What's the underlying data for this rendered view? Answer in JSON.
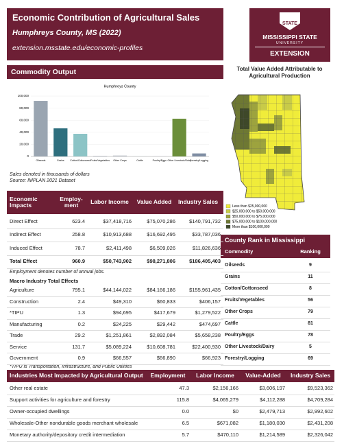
{
  "header": {
    "title": "Economic Contribution of Agricultural Sales",
    "subtitle": "Humphreys County, MS (2022)",
    "url": "extension.msstate.edu/economic-profiles"
  },
  "logo": {
    "shield": "STATE",
    "university_name": "MISSISSIPPI STATE",
    "university": "UNIVERSITY",
    "unit": "EXTENSION"
  },
  "commodity_output": {
    "heading": "Commodity Output",
    "chart": {
      "type": "bar",
      "title": "Humphreys County",
      "categories": [
        "Oilseeds",
        "Grains",
        "Cotton/Cottonseed",
        "Fruits/Vegetables",
        "Other Crops",
        "Cattle",
        "Poultry/Eggs",
        "Other Livestock/Dairy",
        "Forestry/Logging"
      ],
      "values": [
        92000,
        46500,
        37500,
        1000,
        1500,
        200,
        300,
        62500,
        5000
      ],
      "colors": [
        "#9aa5b1",
        "#2e6f7e",
        "#8cc4c6",
        "#b9bfc6",
        "#b9bfc6",
        "#b9bfc6",
        "#b9bfc6",
        "#6b8e3a",
        "#7f8ea3"
      ],
      "ylim": [
        0,
        100000
      ],
      "yticks": [
        0,
        {
          "value": 20000,
          "label": "20,000"
        },
        {
          "value": 40000,
          "label": "40,000"
        },
        {
          "value": 60000,
          "label": "60,000"
        },
        {
          "value": 80000,
          "label": "80,000"
        },
        {
          "value": 100000,
          "label": "100,000"
        }
      ]
    },
    "note": "Sales denoted in thousands of dollars",
    "source": "Source: IMPLAN 2021 Dataset"
  },
  "map": {
    "title": "Total Value Added Attributable to Agricultural Production",
    "legend": [
      {
        "label": "Less than $25,000,000",
        "color": "#f0ec3a"
      },
      {
        "label": "$25,000,000 to $50,000,000",
        "color": "#c8cb48"
      },
      {
        "label": "$50,000,000 to $75,000,000",
        "color": "#9da33e"
      },
      {
        "label": "$75,000,000 to $100,000,000",
        "color": "#6e7833"
      },
      {
        "label": "More than $100,000,000",
        "color": "#3e4829"
      }
    ]
  },
  "impacts": {
    "columns": [
      "Economic Impacts",
      "Employ-ment",
      "Labor Income",
      "Value Added",
      "Industry Sales"
    ],
    "rows": [
      [
        "Direct Effect",
        "623.4",
        "$37,418,716",
        "$75,070,286",
        "$140,791,732"
      ],
      [
        "Indirect Effect",
        "258.8",
        "$10,913,688",
        "$16,692,495",
        "$33,787,036"
      ],
      [
        "Induced Effect",
        "78.7",
        "$2,411,498",
        "$6,509,026",
        "$11,826,636"
      ],
      [
        "Total Effect",
        "960.9",
        "$50,743,902",
        "$98,271,806",
        "$186,405,403"
      ]
    ],
    "note": "Employment denotes number of annual jobs.",
    "macro_title": "Macro Industry Total Effects",
    "macro_rows": [
      [
        "Agriculture",
        "795.1",
        "$44,144,022",
        "$84,166,186",
        "$155,961,435"
      ],
      [
        "Construction",
        "2.4",
        "$49,310",
        "$60,833",
        "$406,157"
      ],
      [
        "*TIPU",
        "1.3",
        "$94,695",
        "$417,679",
        "$1,279,522"
      ],
      [
        "Manufacturing",
        "0.2",
        "$24,225",
        "$29,442",
        "$474,697"
      ],
      [
        "Trade",
        "29.2",
        "$1,251,861",
        "$2,892,084",
        "$5,658,238"
      ],
      [
        "Service",
        "131.7",
        "$5,089,224",
        "$10,608,781",
        "$22,400,930"
      ],
      [
        "Government",
        "0.9",
        "$66,557",
        "$66,890",
        "$66,923"
      ]
    ],
    "footnote": "*TIPU is Transportation, Infrastructure, and Public Utilities"
  },
  "county_rank": {
    "title": "County Rank in Mississippi",
    "columns": [
      "Commodity",
      "Ranking"
    ],
    "rows": [
      [
        "Oilseeds",
        9
      ],
      [
        "Grains",
        11
      ],
      [
        "Cotton/Cottonseed",
        8
      ],
      [
        "Fruits/Vegetables",
        56
      ],
      [
        "Other Crops",
        79
      ],
      [
        "Cattle",
        81
      ],
      [
        "Poultry/Eggs",
        78
      ],
      [
        "Other Livestock/Dairy",
        5
      ],
      [
        "Forestry/Logging",
        69
      ]
    ]
  },
  "industries": {
    "columns": [
      "Industries Most Impacted by Agricultural Output",
      "Employment",
      "Labor Income",
      "Value-Added",
      "Industry Sales"
    ],
    "rows": [
      [
        "Other real estate",
        "47.3",
        "$2,156,166",
        "$3,606,197",
        "$9,523,362"
      ],
      [
        "Support activities for agriculture and forestry",
        "115.8",
        "$4,065,279",
        "$4,112,288",
        "$4,709,284"
      ],
      [
        "Owner-occupied dwellings",
        "0.0",
        "$0",
        "$2,479,713",
        "$2,992,602"
      ],
      [
        "Wholesale-Other nondurable goods merchant wholesale",
        "6.5",
        "$671,082",
        "$1,180,030",
        "$2,431,208"
      ],
      [
        "Monetary authority/depository credit intermediation",
        "5.7",
        "$470,110",
        "$1,214,589",
        "$2,326,042"
      ]
    ]
  }
}
